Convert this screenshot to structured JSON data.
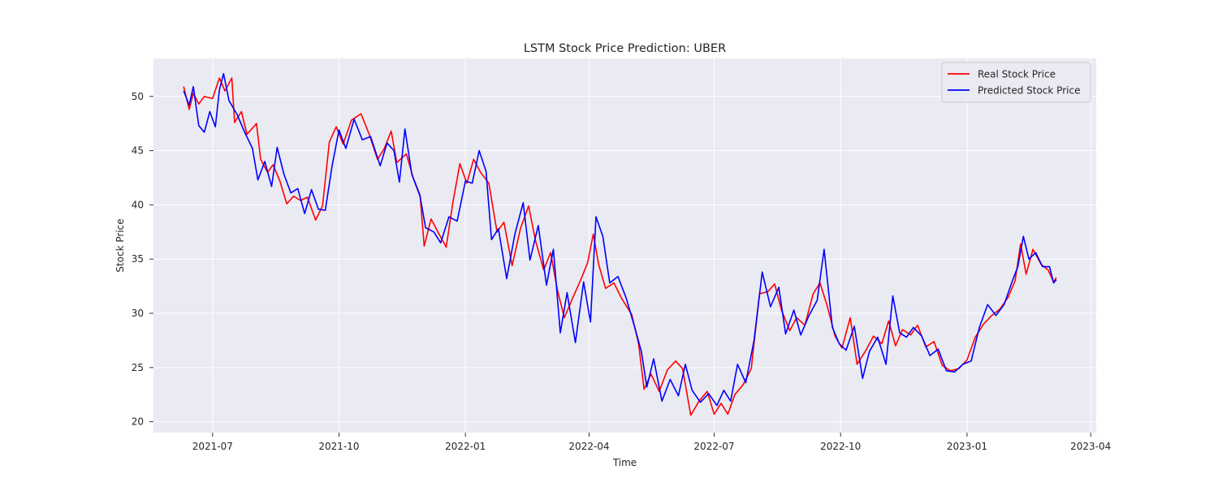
{
  "chart_data": {
    "type": "line",
    "title": "LSTM Stock Price Prediction: UBER",
    "xlabel": "Time",
    "ylabel": "Stock Price",
    "xlim": [
      "2021-05-19",
      "2023-04-05"
    ],
    "ylim": [
      19.0,
      53.5
    ],
    "x_ticks": [
      "2021-07-01",
      "2021-10-01",
      "2022-01-01",
      "2022-04-01",
      "2022-07-01",
      "2022-10-01",
      "2023-01-01",
      "2023-04-01"
    ],
    "x_tick_labels": [
      "2021-07",
      "2021-10",
      "2022-01",
      "2022-04",
      "2022-07",
      "2022-10",
      "2023-01",
      "2023-04"
    ],
    "y_ticks": [
      20,
      25,
      30,
      35,
      40,
      45,
      50
    ],
    "y_tick_labels": [
      "20",
      "25",
      "30",
      "35",
      "40",
      "45",
      "50"
    ],
    "grid": true,
    "background": "#eaeaf2",
    "legend_position": "top-right",
    "series": [
      {
        "name": "Real Stock Price",
        "color": "#ff0000",
        "points": [
          [
            "2021-06-10",
            50.9
          ],
          [
            "2021-06-14",
            48.8
          ],
          [
            "2021-06-17",
            50.3
          ],
          [
            "2021-06-21",
            49.3
          ],
          [
            "2021-06-25",
            50.0
          ],
          [
            "2021-07-01",
            49.8
          ],
          [
            "2021-07-06",
            51.7
          ],
          [
            "2021-07-10",
            50.5
          ],
          [
            "2021-07-15",
            51.7
          ],
          [
            "2021-07-17",
            47.6
          ],
          [
            "2021-07-22",
            48.6
          ],
          [
            "2021-07-26",
            46.5
          ],
          [
            "2021-08-02",
            47.5
          ],
          [
            "2021-08-05",
            44.2
          ],
          [
            "2021-08-10",
            43.0
          ],
          [
            "2021-08-14",
            43.7
          ],
          [
            "2021-08-19",
            42.2
          ],
          [
            "2021-08-24",
            40.1
          ],
          [
            "2021-08-29",
            40.8
          ],
          [
            "2021-09-03",
            40.4
          ],
          [
            "2021-09-08",
            40.7
          ],
          [
            "2021-09-14",
            38.6
          ],
          [
            "2021-09-19",
            39.9
          ],
          [
            "2021-09-24",
            45.8
          ],
          [
            "2021-09-29",
            47.2
          ],
          [
            "2021-10-04",
            45.6
          ],
          [
            "2021-10-10",
            47.8
          ],
          [
            "2021-10-17",
            48.4
          ],
          [
            "2021-10-23",
            46.5
          ],
          [
            "2021-10-29",
            44.2
          ],
          [
            "2021-11-03",
            45.2
          ],
          [
            "2021-11-08",
            46.8
          ],
          [
            "2021-11-12",
            43.9
          ],
          [
            "2021-11-19",
            44.7
          ],
          [
            "2021-11-24",
            42.5
          ],
          [
            "2021-11-29",
            40.9
          ],
          [
            "2021-12-02",
            36.2
          ],
          [
            "2021-12-07",
            38.7
          ],
          [
            "2021-12-12",
            37.5
          ],
          [
            "2021-12-18",
            36.1
          ],
          [
            "2021-12-23",
            40.3
          ],
          [
            "2021-12-28",
            43.8
          ],
          [
            "2022-01-02",
            42.0
          ],
          [
            "2022-01-07",
            44.2
          ],
          [
            "2022-01-12",
            43.0
          ],
          [
            "2022-01-18",
            42.0
          ],
          [
            "2022-01-24",
            37.5
          ],
          [
            "2022-01-29",
            38.4
          ],
          [
            "2022-02-04",
            34.4
          ],
          [
            "2022-02-10",
            37.8
          ],
          [
            "2022-02-16",
            39.9
          ],
          [
            "2022-02-21",
            36.7
          ],
          [
            "2022-02-27",
            34.0
          ],
          [
            "2022-03-04",
            35.6
          ],
          [
            "2022-03-09",
            32.1
          ],
          [
            "2022-03-14",
            29.6
          ],
          [
            "2022-03-20",
            31.4
          ],
          [
            "2022-03-26",
            33.1
          ],
          [
            "2022-03-31",
            34.7
          ],
          [
            "2022-04-04",
            37.3
          ],
          [
            "2022-04-08",
            34.5
          ],
          [
            "2022-04-13",
            32.3
          ],
          [
            "2022-04-19",
            32.8
          ],
          [
            "2022-04-25",
            31.3
          ],
          [
            "2022-05-02",
            29.9
          ],
          [
            "2022-05-07",
            27.2
          ],
          [
            "2022-05-11",
            23.0
          ],
          [
            "2022-05-16",
            24.4
          ],
          [
            "2022-05-22",
            22.8
          ],
          [
            "2022-05-28",
            24.8
          ],
          [
            "2022-06-03",
            25.6
          ],
          [
            "2022-06-08",
            24.9
          ],
          [
            "2022-06-14",
            20.6
          ],
          [
            "2022-06-20",
            21.9
          ],
          [
            "2022-06-26",
            22.8
          ],
          [
            "2022-07-01",
            20.7
          ],
          [
            "2022-07-06",
            21.7
          ],
          [
            "2022-07-11",
            20.7
          ],
          [
            "2022-07-16",
            22.5
          ],
          [
            "2022-07-22",
            23.4
          ],
          [
            "2022-07-28",
            24.9
          ],
          [
            "2022-08-03",
            31.8
          ],
          [
            "2022-08-09",
            32.0
          ],
          [
            "2022-08-14",
            32.7
          ],
          [
            "2022-08-19",
            30.3
          ],
          [
            "2022-08-25",
            28.4
          ],
          [
            "2022-08-30",
            29.6
          ],
          [
            "2022-09-05",
            28.9
          ],
          [
            "2022-09-11",
            31.8
          ],
          [
            "2022-09-16",
            32.8
          ],
          [
            "2022-09-21",
            30.8
          ],
          [
            "2022-09-27",
            27.9
          ],
          [
            "2022-10-02",
            26.8
          ],
          [
            "2022-10-08",
            29.6
          ],
          [
            "2022-10-13",
            25.3
          ],
          [
            "2022-10-19",
            26.5
          ],
          [
            "2022-10-25",
            27.9
          ],
          [
            "2022-10-31",
            27.2
          ],
          [
            "2022-11-05",
            29.3
          ],
          [
            "2022-11-10",
            27.0
          ],
          [
            "2022-11-15",
            28.5
          ],
          [
            "2022-11-21",
            28.0
          ],
          [
            "2022-11-26",
            28.9
          ],
          [
            "2022-12-02",
            26.9
          ],
          [
            "2022-12-08",
            27.4
          ],
          [
            "2022-12-14",
            25.2
          ],
          [
            "2022-12-20",
            24.7
          ],
          [
            "2022-12-26",
            24.9
          ],
          [
            "2023-01-01",
            25.7
          ],
          [
            "2023-01-07",
            27.8
          ],
          [
            "2023-01-13",
            29.0
          ],
          [
            "2023-01-19",
            29.8
          ],
          [
            "2023-01-25",
            30.4
          ],
          [
            "2023-01-31",
            31.5
          ],
          [
            "2023-02-05",
            33.0
          ],
          [
            "2023-02-09",
            36.4
          ],
          [
            "2023-02-13",
            33.6
          ],
          [
            "2023-02-18",
            35.9
          ],
          [
            "2023-02-24",
            34.5
          ],
          [
            "2023-03-01",
            34.0
          ],
          [
            "2023-03-05",
            32.9
          ],
          [
            "2023-03-07",
            33.3
          ]
        ]
      },
      {
        "name": "Predicted Stock Price",
        "color": "#0000ff",
        "points": [
          [
            "2021-06-10",
            50.5
          ],
          [
            "2021-06-14",
            49.2
          ],
          [
            "2021-06-17",
            50.9
          ],
          [
            "2021-06-21",
            47.3
          ],
          [
            "2021-06-25",
            46.7
          ],
          [
            "2021-06-29",
            48.6
          ],
          [
            "2021-07-03",
            47.2
          ],
          [
            "2021-07-06",
            50.6
          ],
          [
            "2021-07-09",
            52.1
          ],
          [
            "2021-07-13",
            49.6
          ],
          [
            "2021-07-19",
            48.3
          ],
          [
            "2021-07-24",
            46.8
          ],
          [
            "2021-07-30",
            45.2
          ],
          [
            "2021-08-03",
            42.3
          ],
          [
            "2021-08-08",
            44.0
          ],
          [
            "2021-08-13",
            41.7
          ],
          [
            "2021-08-17",
            45.3
          ],
          [
            "2021-08-22",
            42.8
          ],
          [
            "2021-08-27",
            41.1
          ],
          [
            "2021-09-01",
            41.5
          ],
          [
            "2021-09-06",
            39.2
          ],
          [
            "2021-09-11",
            41.4
          ],
          [
            "2021-09-16",
            39.6
          ],
          [
            "2021-09-21",
            39.5
          ],
          [
            "2021-09-26",
            43.6
          ],
          [
            "2021-10-01",
            46.9
          ],
          [
            "2021-10-06",
            45.2
          ],
          [
            "2021-10-12",
            47.9
          ],
          [
            "2021-10-18",
            46.0
          ],
          [
            "2021-10-24",
            46.3
          ],
          [
            "2021-10-31",
            43.6
          ],
          [
            "2021-11-05",
            45.7
          ],
          [
            "2021-11-10",
            45.0
          ],
          [
            "2021-11-14",
            42.1
          ],
          [
            "2021-11-18",
            47.0
          ],
          [
            "2021-11-23",
            42.8
          ],
          [
            "2021-11-29",
            40.8
          ],
          [
            "2021-12-03",
            37.9
          ],
          [
            "2021-12-09",
            37.5
          ],
          [
            "2021-12-14",
            36.5
          ],
          [
            "2021-12-20",
            38.9
          ],
          [
            "2021-12-26",
            38.5
          ],
          [
            "2022-01-01",
            42.2
          ],
          [
            "2022-01-06",
            42.0
          ],
          [
            "2022-01-11",
            45.0
          ],
          [
            "2022-01-16",
            43.1
          ],
          [
            "2022-01-20",
            36.8
          ],
          [
            "2022-01-25",
            37.8
          ],
          [
            "2022-01-31",
            33.2
          ],
          [
            "2022-02-06",
            37.3
          ],
          [
            "2022-02-12",
            40.2
          ],
          [
            "2022-02-17",
            34.9
          ],
          [
            "2022-02-23",
            38.1
          ],
          [
            "2022-03-01",
            32.6
          ],
          [
            "2022-03-06",
            35.9
          ],
          [
            "2022-03-11",
            28.2
          ],
          [
            "2022-03-16",
            31.9
          ],
          [
            "2022-03-22",
            27.3
          ],
          [
            "2022-03-28",
            32.9
          ],
          [
            "2022-04-02",
            29.2
          ],
          [
            "2022-04-06",
            38.9
          ],
          [
            "2022-04-11",
            37.1
          ],
          [
            "2022-04-16",
            32.8
          ],
          [
            "2022-04-22",
            33.4
          ],
          [
            "2022-04-28",
            31.4
          ],
          [
            "2022-05-04",
            28.8
          ],
          [
            "2022-05-09",
            26.5
          ],
          [
            "2022-05-13",
            23.2
          ],
          [
            "2022-05-18",
            25.8
          ],
          [
            "2022-05-24",
            21.9
          ],
          [
            "2022-05-30",
            23.9
          ],
          [
            "2022-06-05",
            22.4
          ],
          [
            "2022-06-10",
            25.3
          ],
          [
            "2022-06-15",
            22.9
          ],
          [
            "2022-06-21",
            21.8
          ],
          [
            "2022-06-27",
            22.6
          ],
          [
            "2022-07-03",
            21.5
          ],
          [
            "2022-07-08",
            22.9
          ],
          [
            "2022-07-13",
            21.9
          ],
          [
            "2022-07-18",
            25.3
          ],
          [
            "2022-07-24",
            23.6
          ],
          [
            "2022-07-30",
            27.5
          ],
          [
            "2022-08-05",
            33.8
          ],
          [
            "2022-08-11",
            30.6
          ],
          [
            "2022-08-17",
            32.4
          ],
          [
            "2022-08-22",
            28.1
          ],
          [
            "2022-08-28",
            30.3
          ],
          [
            "2022-09-02",
            28.0
          ],
          [
            "2022-09-08",
            29.8
          ],
          [
            "2022-09-14",
            31.2
          ],
          [
            "2022-09-19",
            35.9
          ],
          [
            "2022-09-25",
            28.7
          ],
          [
            "2022-09-30",
            27.2
          ],
          [
            "2022-10-05",
            26.6
          ],
          [
            "2022-10-11",
            28.8
          ],
          [
            "2022-10-17",
            24.0
          ],
          [
            "2022-10-22",
            26.5
          ],
          [
            "2022-10-28",
            27.8
          ],
          [
            "2022-11-03",
            25.3
          ],
          [
            "2022-11-08",
            31.6
          ],
          [
            "2022-11-13",
            28.2
          ],
          [
            "2022-11-18",
            27.8
          ],
          [
            "2022-11-23",
            28.7
          ],
          [
            "2022-11-29",
            27.9
          ],
          [
            "2022-12-05",
            26.1
          ],
          [
            "2022-12-11",
            26.7
          ],
          [
            "2022-12-17",
            24.7
          ],
          [
            "2022-12-23",
            24.6
          ],
          [
            "2022-12-29",
            25.3
          ],
          [
            "2023-01-04",
            25.6
          ],
          [
            "2023-01-10",
            28.7
          ],
          [
            "2023-01-16",
            30.8
          ],
          [
            "2023-01-22",
            29.8
          ],
          [
            "2023-01-28",
            30.8
          ],
          [
            "2023-02-03",
            33.0
          ],
          [
            "2023-02-07",
            34.3
          ],
          [
            "2023-02-11",
            37.1
          ],
          [
            "2023-02-15",
            35.0
          ],
          [
            "2023-02-20",
            35.6
          ],
          [
            "2023-02-25",
            34.3
          ],
          [
            "2023-03-02",
            34.3
          ],
          [
            "2023-03-05",
            32.8
          ],
          [
            "2023-03-07",
            33.1
          ]
        ]
      }
    ]
  }
}
